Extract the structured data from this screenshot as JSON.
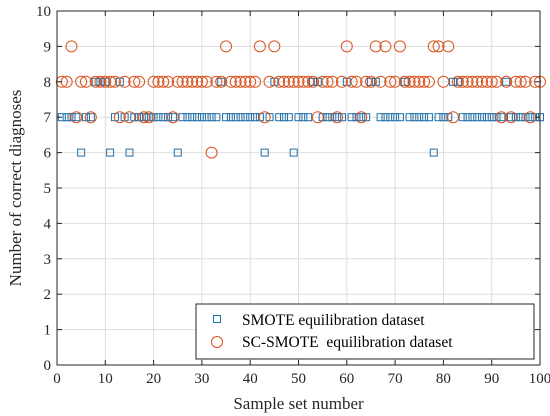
{
  "chart_data": {
    "type": "scatter",
    "xlabel": "Sample set number",
    "ylabel": "Number of correct diagnoses",
    "xlim": [
      0,
      100
    ],
    "ylim": [
      0,
      10
    ],
    "xticks": [
      0,
      10,
      20,
      30,
      40,
      50,
      60,
      70,
      80,
      90,
      100
    ],
    "yticks": [
      0,
      1,
      2,
      3,
      4,
      5,
      6,
      7,
      8,
      9,
      10
    ],
    "grid": true,
    "legend_position": "bottom-right",
    "series": [
      {
        "name": "SMOTE equilibration dataset",
        "marker": "square",
        "color": "#1f6faa",
        "x": [
          1,
          2,
          3,
          4,
          5,
          6,
          7,
          8,
          9,
          10,
          11,
          12,
          13,
          14,
          15,
          16,
          17,
          18,
          19,
          20,
          21,
          22,
          23,
          24,
          25,
          26,
          27,
          28,
          29,
          30,
          31,
          32,
          33,
          34,
          35,
          36,
          37,
          38,
          39,
          40,
          41,
          42,
          43,
          44,
          45,
          46,
          47,
          48,
          49,
          50,
          51,
          52,
          53,
          54,
          55,
          56,
          57,
          58,
          59,
          60,
          61,
          62,
          63,
          64,
          65,
          66,
          67,
          68,
          69,
          70,
          71,
          72,
          73,
          74,
          75,
          76,
          77,
          78,
          79,
          80,
          81,
          82,
          83,
          84,
          85,
          86,
          87,
          88,
          89,
          90,
          91,
          92,
          93,
          94,
          95,
          96,
          97,
          98,
          99,
          100
        ],
        "y": [
          7,
          7,
          7,
          7,
          6,
          7,
          7,
          8,
          8,
          8,
          6,
          7,
          8,
          7,
          6,
          7,
          7,
          7,
          7,
          7,
          7,
          7,
          7,
          7,
          6,
          7,
          7,
          7,
          7,
          7,
          7,
          7,
          7,
          8,
          7,
          7,
          7,
          7,
          7,
          7,
          7,
          7,
          6,
          7,
          8,
          7,
          7,
          7,
          6,
          7,
          7,
          7,
          8,
          8,
          7,
          7,
          7,
          7,
          7,
          8,
          7,
          7,
          7,
          7,
          8,
          8,
          7,
          7,
          7,
          7,
          7,
          8,
          7,
          7,
          7,
          7,
          7,
          6,
          7,
          7,
          7,
          8,
          8,
          7,
          7,
          7,
          7,
          7,
          7,
          7,
          7,
          7,
          8,
          7,
          7,
          7,
          7,
          7,
          7,
          7
        ]
      },
      {
        "name": "SC-SMOTE  equilibration dataset",
        "marker": "circle",
        "color": "#d9531e",
        "x": [
          1,
          2,
          3,
          4,
          5,
          6,
          7,
          8,
          9,
          10,
          11,
          12,
          13,
          14,
          15,
          16,
          17,
          18,
          19,
          20,
          21,
          22,
          23,
          24,
          25,
          26,
          27,
          28,
          29,
          30,
          31,
          32,
          33,
          34,
          35,
          36,
          37,
          38,
          39,
          40,
          41,
          42,
          43,
          44,
          45,
          46,
          47,
          48,
          49,
          50,
          51,
          52,
          53,
          54,
          55,
          56,
          57,
          58,
          59,
          60,
          61,
          62,
          63,
          64,
          65,
          66,
          67,
          68,
          69,
          70,
          71,
          72,
          73,
          74,
          75,
          76,
          77,
          78,
          79,
          80,
          81,
          82,
          83,
          84,
          85,
          86,
          87,
          88,
          89,
          90,
          91,
          92,
          93,
          94,
          95,
          96,
          97,
          98,
          99,
          100
        ],
        "y": [
          8,
          8,
          9,
          7,
          8,
          8,
          7,
          8,
          8,
          8,
          8,
          8,
          7,
          8,
          7,
          8,
          8,
          7,
          7,
          8,
          8,
          8,
          8,
          7,
          8,
          8,
          8,
          8,
          8,
          8,
          8,
          6,
          8,
          8,
          9,
          8,
          8,
          8,
          8,
          8,
          8,
          9,
          7,
          8,
          9,
          8,
          8,
          8,
          8,
          8,
          8,
          8,
          8,
          7,
          8,
          8,
          8,
          7,
          8,
          9,
          8,
          8,
          7,
          8,
          8,
          9,
          8,
          9,
          8,
          8,
          9,
          8,
          8,
          8,
          8,
          8,
          8,
          9,
          9,
          8,
          9,
          7,
          8,
          8,
          8,
          8,
          8,
          8,
          8,
          8,
          8,
          7,
          8,
          7,
          8,
          8,
          8,
          7,
          8,
          8
        ]
      }
    ]
  }
}
